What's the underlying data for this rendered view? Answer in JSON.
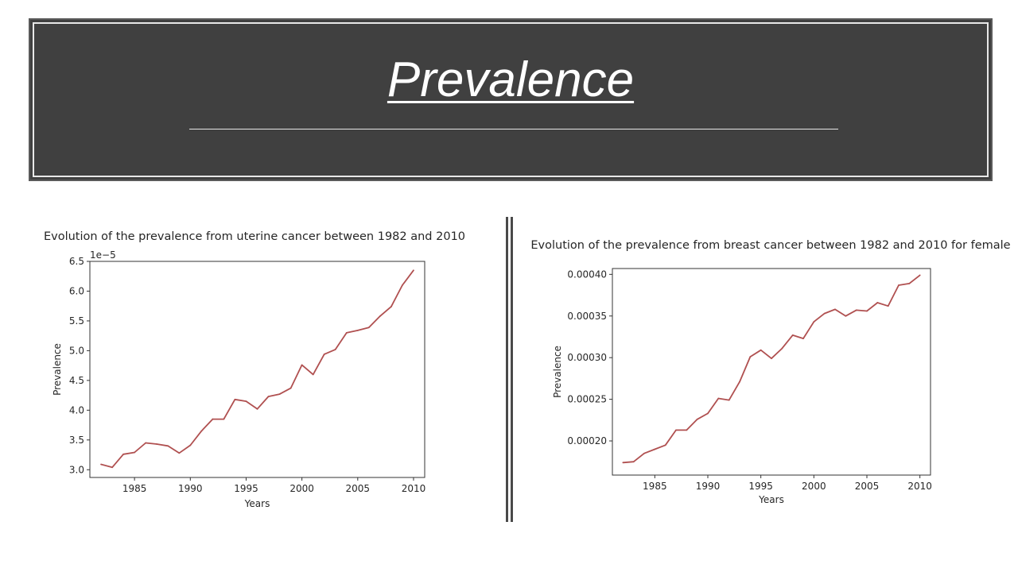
{
  "header": {
    "title": "Prevalence"
  },
  "chart_data": [
    {
      "type": "line",
      "title": "Evolution of the prevalence from uterine cancer between 1982 and 2010",
      "xlabel": "Years",
      "ylabel": "Prevalence",
      "offset_label": "1e−5",
      "xlim": [
        1981,
        2011
      ],
      "ylim": [
        2.87,
        6.5
      ],
      "xticks": [
        1985,
        1990,
        1995,
        2000,
        2005,
        2010
      ],
      "xtick_labels": [
        "1985",
        "1990",
        "1995",
        "2000",
        "2005",
        "2010"
      ],
      "yticks": [
        3.0,
        3.5,
        4.0,
        4.5,
        5.0,
        5.5,
        6.0,
        6.5
      ],
      "ytick_labels": [
        "3.0",
        "3.5",
        "4.0",
        "4.5",
        "5.0",
        "5.5",
        "6.0",
        "6.5"
      ],
      "line_color": "#b05050",
      "x": [
        1982,
        1983,
        1984,
        1985,
        1986,
        1987,
        1988,
        1989,
        1990,
        1991,
        1992,
        1993,
        1994,
        1995,
        1996,
        1997,
        1998,
        1999,
        2000,
        2001,
        2002,
        2003,
        2004,
        2005,
        2006,
        2007,
        2008,
        2009,
        2010
      ],
      "values": [
        3.09,
        3.04,
        3.26,
        3.29,
        3.45,
        3.43,
        3.4,
        3.28,
        3.41,
        3.65,
        3.85,
        3.85,
        4.18,
        4.15,
        4.02,
        4.23,
        4.27,
        4.37,
        4.76,
        4.6,
        4.94,
        5.02,
        5.3,
        5.34,
        5.39,
        5.58,
        5.74,
        6.1,
        6.35
      ],
      "grid": false
    },
    {
      "type": "line",
      "title": "Evolution of the prevalence from breast cancer between 1982 and 2010 for female",
      "xlabel": "Years",
      "ylabel": "Prevalence",
      "xlim": [
        1981,
        2011
      ],
      "ylim": [
        0.000159,
        0.000407
      ],
      "xticks": [
        1985,
        1990,
        1995,
        2000,
        2005,
        2010
      ],
      "xtick_labels": [
        "1985",
        "1990",
        "1995",
        "2000",
        "2005",
        "2010"
      ],
      "yticks": [
        0.0002,
        0.00025,
        0.0003,
        0.00035,
        0.0004
      ],
      "ytick_labels": [
        "0.00020",
        "0.00025",
        "0.00030",
        "0.00035",
        "0.00040"
      ],
      "line_color": "#b05050",
      "x": [
        1982,
        1983,
        1984,
        1985,
        1986,
        1987,
        1988,
        1989,
        1990,
        1991,
        1992,
        1993,
        1994,
        1995,
        1996,
        1997,
        1998,
        1999,
        2000,
        2001,
        2002,
        2003,
        2004,
        2005,
        2006,
        2007,
        2008,
        2009,
        2010
      ],
      "values": [
        0.000174,
        0.000175,
        0.000185,
        0.00019,
        0.000195,
        0.000213,
        0.000213,
        0.000226,
        0.000233,
        0.000251,
        0.000249,
        0.000271,
        0.000301,
        0.000309,
        0.000299,
        0.000311,
        0.000327,
        0.000323,
        0.000343,
        0.000353,
        0.000358,
        0.00035,
        0.000357,
        0.000356,
        0.000366,
        0.000362,
        0.000387,
        0.000389,
        0.000399
      ],
      "grid": false
    }
  ]
}
